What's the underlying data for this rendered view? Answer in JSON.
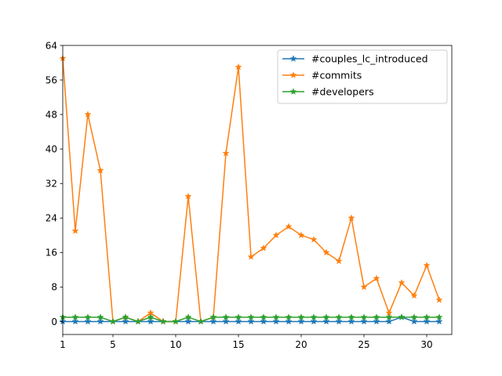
{
  "chart_data": {
    "type": "line",
    "title": "",
    "xlabel": "",
    "ylabel": "",
    "xlim": [
      1,
      32
    ],
    "ylim": [
      -3,
      64
    ],
    "xticks": [
      1,
      5,
      10,
      15,
      20,
      25,
      30
    ],
    "yticks": [
      0,
      8,
      16,
      24,
      32,
      40,
      48,
      56,
      64
    ],
    "grid": false,
    "legend_position": "top-right",
    "marker": "star",
    "x": [
      1,
      2,
      3,
      4,
      5,
      6,
      7,
      8,
      9,
      10,
      11,
      12,
      13,
      14,
      15,
      16,
      17,
      18,
      19,
      20,
      21,
      22,
      23,
      24,
      25,
      26,
      27,
      28,
      29,
      30,
      31
    ],
    "series": [
      {
        "name": "#couples_lc_introduced",
        "color": "#1f77b4",
        "values": [
          0,
          0,
          0,
          0,
          0,
          0,
          0,
          0,
          0,
          0,
          0,
          0,
          0,
          0,
          0,
          0,
          0,
          0,
          0,
          0,
          0,
          0,
          0,
          0,
          0,
          0,
          0,
          1,
          0,
          0,
          0
        ]
      },
      {
        "name": "#commits",
        "color": "#ff7f0e",
        "values": [
          61,
          21,
          48,
          35,
          0,
          1,
          0,
          2,
          0,
          0,
          29,
          0,
          1,
          39,
          59,
          15,
          17,
          20,
          22,
          20,
          19,
          16,
          14,
          24,
          8,
          10,
          2,
          9,
          6,
          13,
          5
        ]
      },
      {
        "name": "#developers",
        "color": "#2ca02c",
        "values": [
          1,
          1,
          1,
          1,
          0,
          1,
          0,
          1,
          0,
          0,
          1,
          0,
          1,
          1,
          1,
          1,
          1,
          1,
          1,
          1,
          1,
          1,
          1,
          1,
          1,
          1,
          1,
          1,
          1,
          1,
          1
        ]
      }
    ]
  }
}
